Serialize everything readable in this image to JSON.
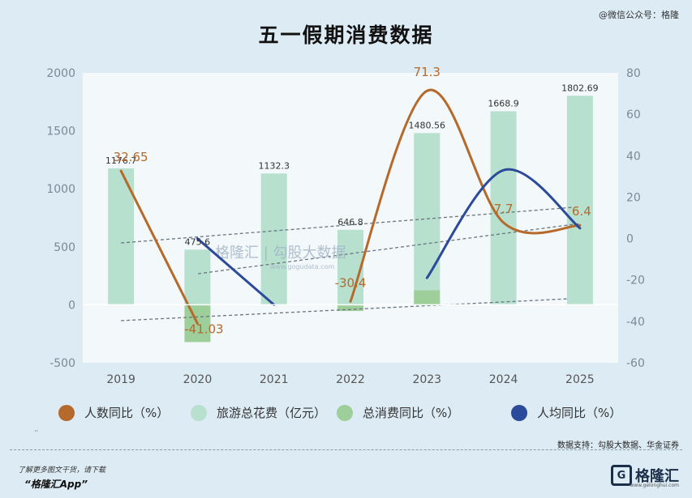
{
  "header": {
    "title": "五一假期消费数据",
    "watermark": "@微信公众号：格隆"
  },
  "chart_data": {
    "type": "bar",
    "categories": [
      "2019",
      "2020",
      "2021",
      "2022",
      "2023",
      "2024",
      "2025"
    ],
    "y_left_ticks": [
      "2000",
      "1500",
      "1000",
      "500",
      "0",
      "-500"
    ],
    "y_left_range": [
      -500,
      2000
    ],
    "y_right_ticks": [
      "80",
      "60",
      "40",
      "20",
      "0",
      "-20",
      "-40",
      "-60"
    ],
    "y_right_range": [
      -60,
      80
    ],
    "grid": false,
    "legend_position": "bottom",
    "series": [
      {
        "name": "人数同比（%）",
        "axis": "right",
        "kind": "curve",
        "color": "#b5692a",
        "values": [
          32.65,
          -41.03,
          null,
          -30.4,
          71.3,
          7.7,
          6.4
        ],
        "labels": [
          "32.65",
          "-41.03",
          "",
          "-30.4",
          "71.3",
          "7.7",
          "6.4"
        ]
      },
      {
        "name": "旅游总花费（亿元）",
        "axis": "left",
        "kind": "bar",
        "color": "#b8e0cf",
        "values": [
          1176.7,
          475.6,
          1132.3,
          646.8,
          1480.56,
          1668.9,
          1802.69
        ],
        "labels": [
          "1176.7",
          "475.6",
          "1132.3",
          "646.8",
          "1480.56",
          "1668.9",
          "1802.69"
        ]
      },
      {
        "name": "总消费同比（%）",
        "axis": "right",
        "kind": "bar",
        "color": "#9ecf9b",
        "values": [
          null,
          -50,
          null,
          -35,
          -25,
          null,
          null
        ]
      },
      {
        "name": "人均同比（%）",
        "axis": "right",
        "kind": "curve",
        "color": "#2c4a9a",
        "values": [
          null,
          0,
          -32,
          null,
          -19,
          33,
          5
        ]
      }
    ]
  },
  "chart_watermark": "格隆汇 | 勾股大数据",
  "chart_watermark_url": "www.gogudata.com",
  "footer": {
    "source": "数据支持：勾股大数据、华金证券",
    "promo_line1": "了解更多图文干货，请下载",
    "promo_line2": "“格隆汇App”",
    "brand_logo": "G",
    "brand_name": "格隆汇",
    "brand_url": "www.gelonghui.com",
    "tiny_mark": "··"
  }
}
